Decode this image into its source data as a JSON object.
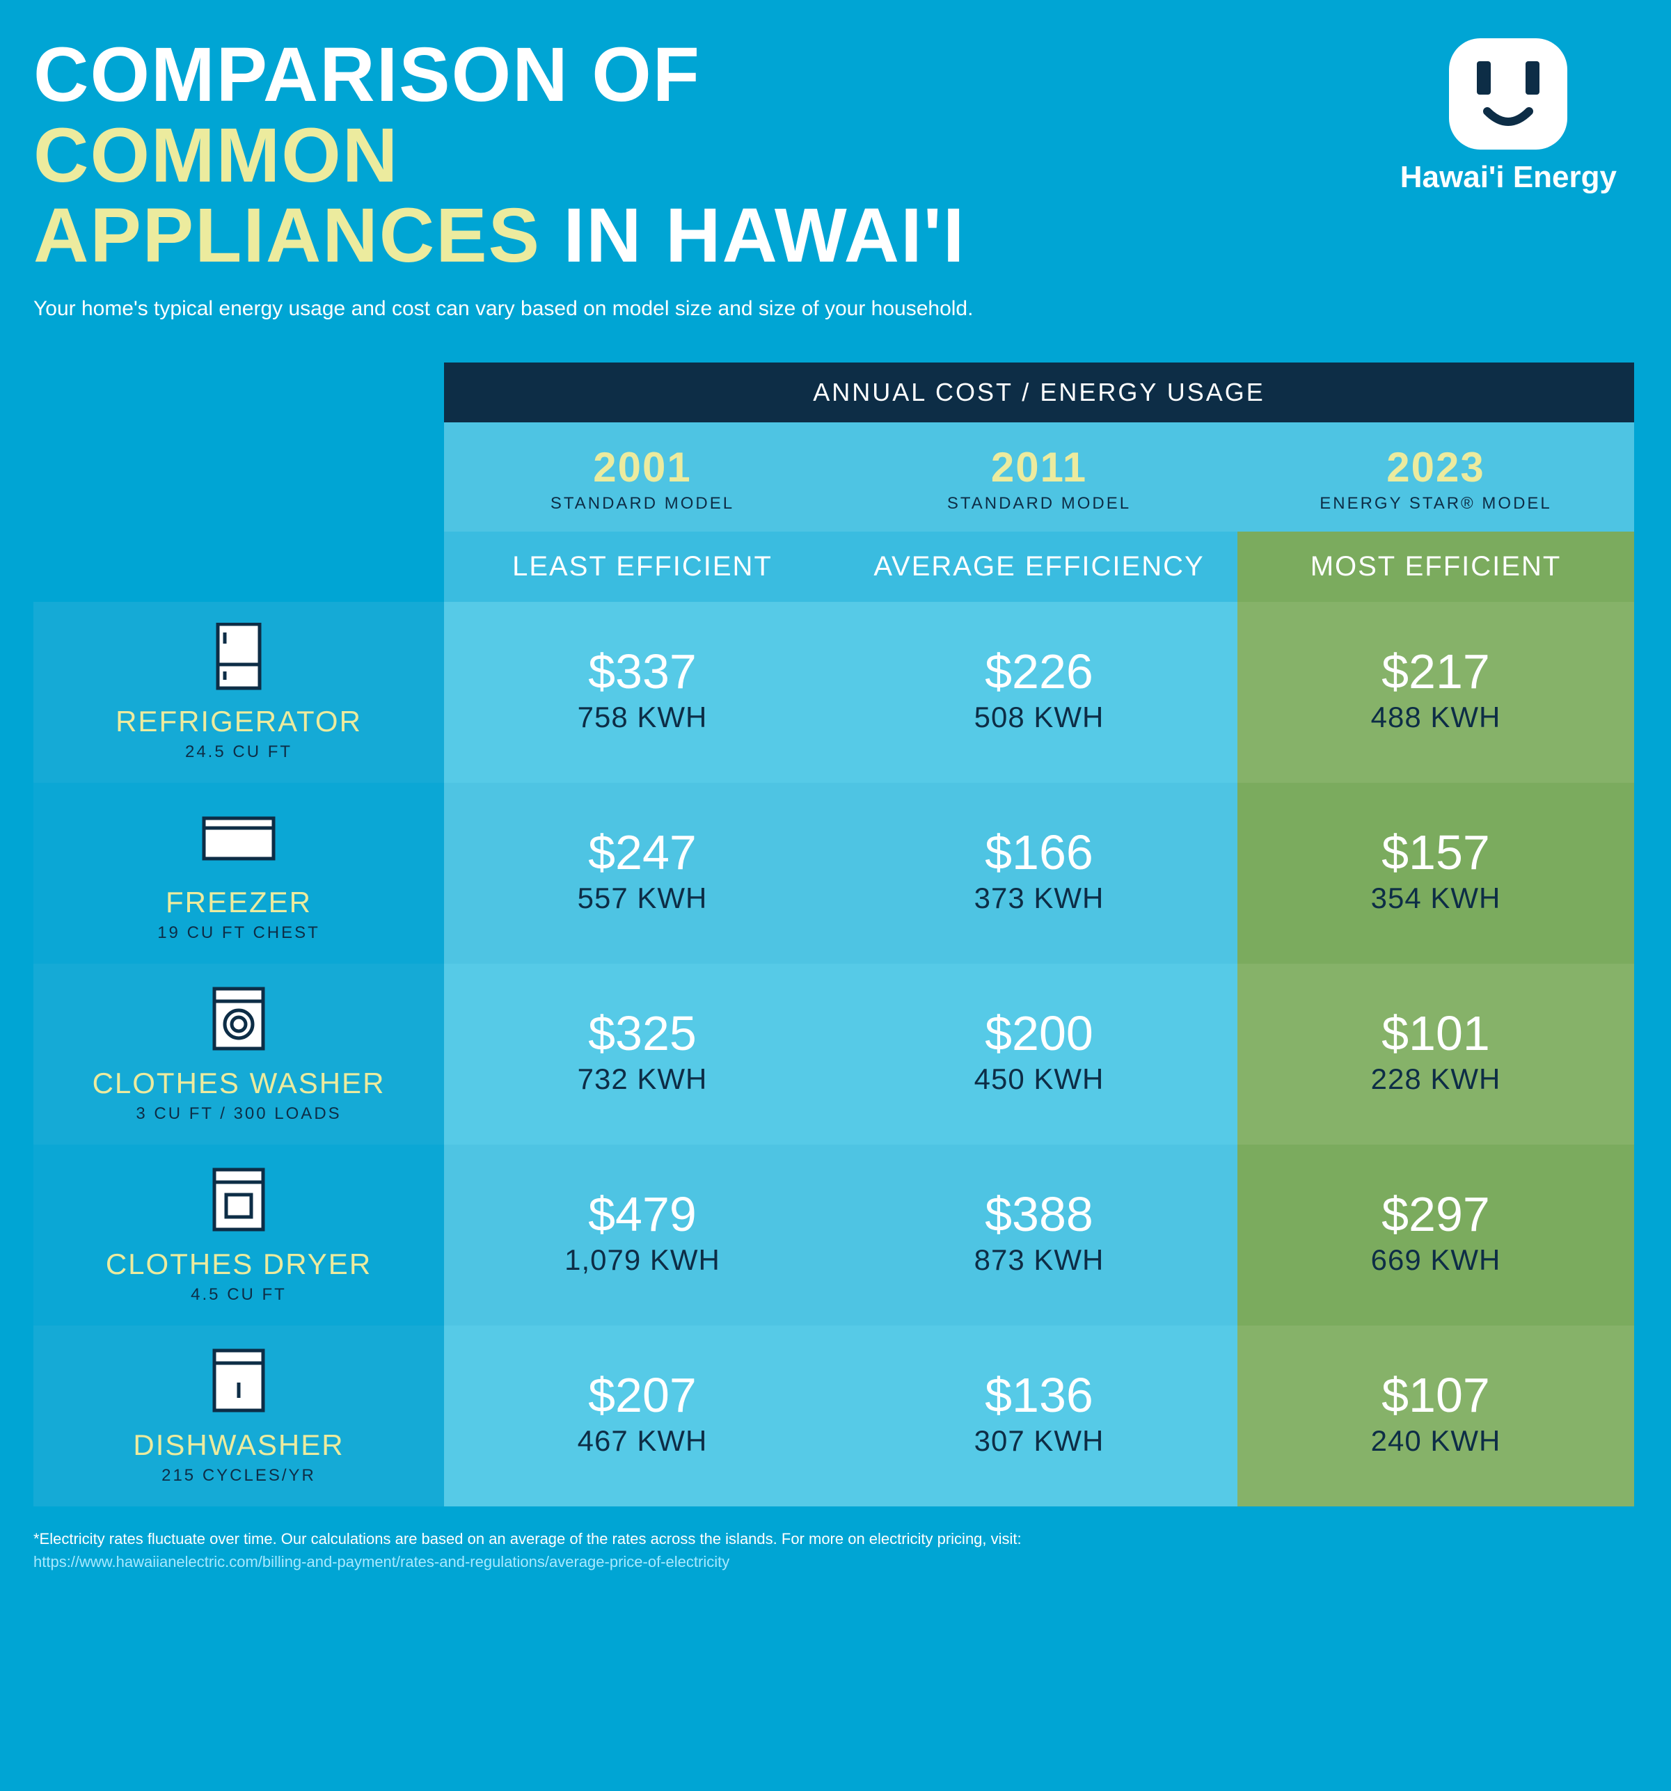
{
  "title": {
    "line1_a": "COMPARISON OF ",
    "line1_b": "COMMON",
    "line2_a": "APPLIANCES ",
    "line2_b": "IN HAWAI'I"
  },
  "subtitle": "Your home's typical energy usage and cost can vary based on model size and size of your household.",
  "logo_text": "Hawai'i Energy",
  "banner": "ANNUAL COST / ENERGY USAGE",
  "colors": {
    "page_bg": "#00a5d4",
    "banner_bg": "#0d2d46",
    "accent_text": "#eceb9e",
    "dark_text": "#0d2d46",
    "white": "#ffffff",
    "year_row_bg": "#4ec4e3",
    "eff_row_bg_light": "#3abce0",
    "eff_row_bg_green": "#7bab5e",
    "row_a_bg": "#56cae7",
    "row_b_bg": "#4ec4e3",
    "label_a_bg": "#15aad6",
    "label_b_bg": "#0ba7d5",
    "col3_row_a": "#86b269",
    "col3_row_b": "#7bab5e",
    "link_color": "#a7e9ff"
  },
  "columns": [
    {
      "year": "2001",
      "model": "STANDARD MODEL",
      "efficiency": "LEAST EFFICIENT",
      "year_bg": "#4ec4e3",
      "eff_bg": "#3abce0"
    },
    {
      "year": "2011",
      "model": "STANDARD MODEL",
      "efficiency": "AVERAGE EFFICIENCY",
      "year_bg": "#4ec4e3",
      "eff_bg": "#3abce0"
    },
    {
      "year": "2023",
      "model": "ENERGY STAR® MODEL",
      "efficiency": "MOST EFFICIENT",
      "year_bg": "#4ec4e3",
      "eff_bg": "#7bab5e"
    }
  ],
  "appliances": [
    {
      "name": "REFRIGERATOR",
      "spec": "24.5 CU FT",
      "icon": "refrigerator-icon",
      "label_bg": "#15aad6",
      "data_bg": [
        "#56cae7",
        "#56cae7",
        "#86b269"
      ],
      "cells": [
        {
          "cost": "$337",
          "kwh": "758 KWH"
        },
        {
          "cost": "$226",
          "kwh": "508 KWH"
        },
        {
          "cost": "$217",
          "kwh": "488 KWH"
        }
      ]
    },
    {
      "name": "FREEZER",
      "spec": "19 CU FT CHEST",
      "icon": "freezer-icon",
      "label_bg": "#0ba7d5",
      "data_bg": [
        "#4ec4e3",
        "#4ec4e3",
        "#7bab5e"
      ],
      "cells": [
        {
          "cost": "$247",
          "kwh": "557 KWH"
        },
        {
          "cost": "$166",
          "kwh": "373 KWH"
        },
        {
          "cost": "$157",
          "kwh": "354 KWH"
        }
      ]
    },
    {
      "name": "CLOTHES WASHER",
      "spec": "3 CU FT / 300 LOADS",
      "icon": "clothes-washer-icon",
      "label_bg": "#15aad6",
      "data_bg": [
        "#56cae7",
        "#56cae7",
        "#86b269"
      ],
      "cells": [
        {
          "cost": "$325",
          "kwh": "732 KWH"
        },
        {
          "cost": "$200",
          "kwh": "450 KWH"
        },
        {
          "cost": "$101",
          "kwh": "228 KWH"
        }
      ]
    },
    {
      "name": "CLOTHES DRYER",
      "spec": "4.5 CU FT",
      "icon": "clothes-dryer-icon",
      "label_bg": "#0ba7d5",
      "data_bg": [
        "#4ec4e3",
        "#4ec4e3",
        "#7bab5e"
      ],
      "cells": [
        {
          "cost": "$479",
          "kwh": "1,079 KWH"
        },
        {
          "cost": "$388",
          "kwh": "873 KWH"
        },
        {
          "cost": "$297",
          "kwh": "669 KWH"
        }
      ]
    },
    {
      "name": "DISHWASHER",
      "spec": "215 CYCLES/YR",
      "icon": "dishwasher-icon",
      "label_bg": "#15aad6",
      "data_bg": [
        "#56cae7",
        "#56cae7",
        "#86b269"
      ],
      "cells": [
        {
          "cost": "$207",
          "kwh": "467 KWH"
        },
        {
          "cost": "$136",
          "kwh": "307 KWH"
        },
        {
          "cost": "$107",
          "kwh": "240 KWH"
        }
      ]
    }
  ],
  "footnote_text": "*Electricity rates fluctuate over time. Our calculations are based on an average of the rates across the islands. For more on electricity pricing, visit:",
  "footnote_link": "https://www.hawaiianelectric.com/billing-and-payment/rates-and-regulations/average-price-of-electricity"
}
